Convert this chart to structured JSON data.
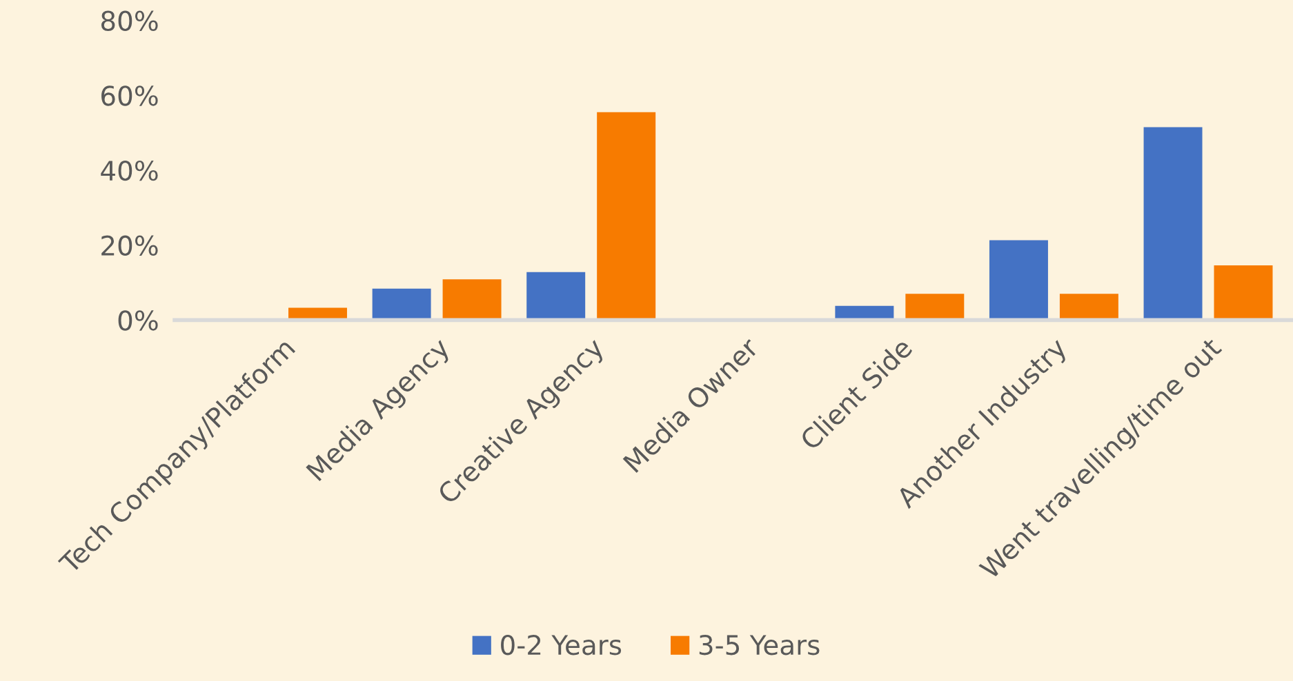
{
  "chart_data": {
    "type": "bar",
    "categories": [
      "Tech Company/Platform",
      "Media Agency",
      "Creative Agency",
      "Media Owner",
      "Client Side",
      "Another Industry",
      "Went travelling/time out"
    ],
    "series": [
      {
        "name": "0-2 Years",
        "color": "#4472c4",
        "values": [
          0,
          8.4,
          12.8,
          0,
          3.8,
          21.3,
          51.5
        ]
      },
      {
        "name": "3-5 Years",
        "color": "#f77b00",
        "values": [
          3.3,
          10.9,
          55.5,
          0,
          7.0,
          7.0,
          14.6
        ]
      }
    ],
    "ylim": [
      0,
      80
    ],
    "yticks": [
      {
        "value": 0,
        "label": "0%"
      },
      {
        "value": 20,
        "label": "20%"
      },
      {
        "value": 40,
        "label": "40%"
      },
      {
        "value": 60,
        "label": "60%"
      },
      {
        "value": 80,
        "label": "80%"
      }
    ],
    "grid": false,
    "legend": "bottom"
  }
}
